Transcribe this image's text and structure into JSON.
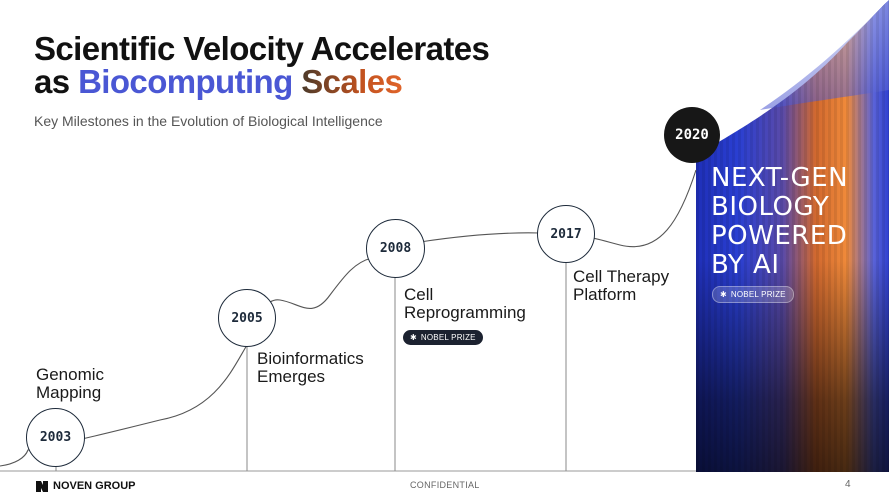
{
  "title": {
    "line1": "Scientific Velocity Accelerates",
    "line2_prefix": "as ",
    "line2_highlight1": "Biocomputing",
    "line2_highlight2": "Scales"
  },
  "subtitle": "Key Milestones in the Evolution of Biological Intelligence",
  "milestones": [
    {
      "year": "2003",
      "label_line1": "Genomic",
      "label_line2": "Mapping"
    },
    {
      "year": "2005",
      "label_line1": "Bioinformatics",
      "label_line2": "Emerges"
    },
    {
      "year": "2008",
      "label_line1": "Cell",
      "label_line2": "Reprogramming",
      "badge": "NOBEL PRIZE"
    },
    {
      "year": "2017",
      "label_line1": "Cell Therapy",
      "label_line2": "Platform"
    },
    {
      "year": "2020",
      "badge": "NOBEL PRIZE"
    }
  ],
  "headline": [
    "NEXT-GEN",
    "BIOLOGY",
    "POWERED",
    "BY AI"
  ],
  "footer": {
    "company": "NOVEN GROUP",
    "confidentiality": "CONFIDENTIAL",
    "page_number": "4"
  },
  "colors": {
    "accent_blue": "#4a57d4",
    "accent_orange": "#e0642a",
    "dark_circle": "#171717",
    "badge_dark": "#1c2230"
  }
}
